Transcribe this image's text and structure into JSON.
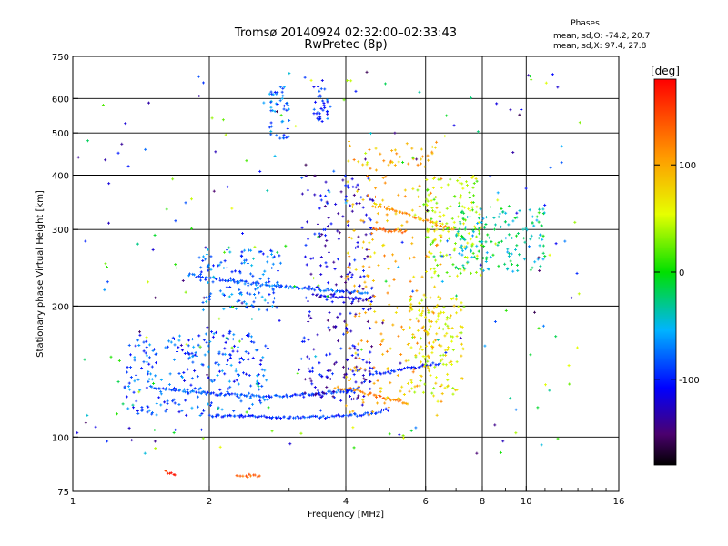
{
  "chart_data": {
    "type": "scatter",
    "title": "Tromsø 20140924 02:32:00–02:33:43",
    "subtitle": "RwPretec (8p)",
    "xlabel": "Frequency [MHz]",
    "ylabel": "Stationary phase Virtual Height [km]",
    "x_scale": "log2",
    "y_scale": "log",
    "xlim": [
      1,
      16
    ],
    "ylim": [
      75,
      750
    ],
    "x_ticks": [
      1,
      2,
      4,
      6,
      8,
      10,
      16
    ],
    "x_minor_ticks": [
      3,
      5,
      7,
      9,
      11,
      12,
      13,
      14,
      15
    ],
    "y_ticks": [
      75,
      100,
      200,
      300,
      400,
      500,
      600,
      750
    ],
    "grid": true,
    "phases_box": {
      "title": "Phases",
      "line_o": "mean, sd,O: -74.2, 20.7",
      "line_x": "mean, sd,X:  97.4, 27.8"
    },
    "colorbar": {
      "label": "[deg]",
      "range": [
        -180,
        180
      ],
      "ticks": [
        100,
        0,
        -100
      ],
      "colormap": "rainbow (black at -180, red at +180)"
    },
    "series_traces": [
      {
        "name": "",
        "kind": "trace",
        "phase": -95,
        "points": [
          [
            2.0,
            112
          ],
          [
            2.5,
            111.5
          ],
          [
            3.0,
            111
          ],
          [
            3.5,
            111
          ],
          [
            4.0,
            112
          ],
          [
            4.5,
            113
          ],
          [
            5.0,
            116
          ]
        ]
      },
      {
        "name": "",
        "kind": "trace",
        "phase": -85,
        "points": [
          [
            1.5,
            130
          ],
          [
            1.8,
            127
          ],
          [
            2.2,
            125
          ],
          [
            2.7,
            124
          ],
          [
            3.2,
            125
          ],
          [
            3.8,
            127
          ],
          [
            4.3,
            129
          ]
        ]
      },
      {
        "name": "",
        "kind": "trace",
        "phase": -105,
        "points": [
          [
            4.5,
            140
          ],
          [
            5.0,
            141
          ],
          [
            5.5,
            144
          ],
          [
            6.0,
            146
          ],
          [
            6.5,
            148
          ]
        ]
      },
      {
        "name": "",
        "kind": "trace",
        "phase": -80,
        "points": [
          [
            1.8,
            236
          ],
          [
            2.0,
            232
          ],
          [
            2.3,
            228
          ],
          [
            2.6,
            224
          ],
          [
            2.9,
            222
          ],
          [
            3.2,
            220
          ],
          [
            3.6,
            218
          ],
          [
            4.0,
            216
          ],
          [
            4.5,
            214
          ]
        ]
      },
      {
        "name": "",
        "kind": "trace",
        "phase": -115,
        "points": [
          [
            3.4,
            212
          ],
          [
            3.8,
            210
          ],
          [
            4.2,
            208
          ],
          [
            4.6,
            206
          ]
        ]
      },
      {
        "name": "",
        "kind": "trace",
        "phase": 110,
        "points": [
          [
            4.6,
            340
          ],
          [
            5.0,
            335
          ],
          [
            5.5,
            325
          ],
          [
            6.0,
            315
          ],
          [
            6.5,
            305
          ],
          [
            7.0,
            300
          ]
        ]
      },
      {
        "name": "",
        "kind": "trace",
        "phase": 130,
        "points": [
          [
            4.6,
            300
          ],
          [
            5.0,
            298
          ],
          [
            5.5,
            296
          ]
        ]
      },
      {
        "name": "",
        "kind": "trace",
        "phase": 120,
        "points": [
          [
            3.8,
            130
          ],
          [
            4.2,
            128
          ],
          [
            4.6,
            125
          ],
          [
            5.0,
            122
          ],
          [
            5.5,
            120
          ]
        ]
      },
      {
        "name": "",
        "kind": "trace",
        "phase": 135,
        "points": [
          [
            2.3,
            82
          ],
          [
            2.4,
            81
          ],
          [
            2.5,
            82
          ],
          [
            2.6,
            81
          ]
        ]
      },
      {
        "name": "",
        "kind": "trace",
        "phase": 160,
        "points": [
          [
            1.6,
            83
          ],
          [
            1.7,
            82
          ]
        ]
      }
    ],
    "series_clusters": [
      {
        "name": "",
        "kind": "cluster",
        "phase": -95,
        "freq": [
          3.4,
          3.7
        ],
        "height": [
          530,
          640
        ]
      },
      {
        "name": "",
        "kind": "cluster",
        "phase": -75,
        "freq": [
          2.7,
          3.0
        ],
        "height": [
          480,
          640
        ]
      },
      {
        "name": "",
        "kind": "cluster",
        "phase": -75,
        "freq": [
          1.9,
          2.9
        ],
        "height": [
          195,
          270
        ]
      },
      {
        "name": "",
        "kind": "cluster",
        "phase": -120,
        "freq": [
          3.2,
          4.6
        ],
        "height": [
          120,
          400
        ]
      },
      {
        "name": "",
        "kind": "cluster",
        "phase": -85,
        "freq": [
          1.3,
          2.7
        ],
        "height": [
          112,
          175
        ]
      },
      {
        "name": "",
        "kind": "cluster",
        "phase": 60,
        "freq": [
          5.5,
          7.3
        ],
        "height": [
          125,
          210
        ]
      },
      {
        "name": "",
        "kind": "cluster",
        "phase": 95,
        "freq": [
          4.0,
          6.5
        ],
        "height": [
          110,
          480
        ]
      },
      {
        "name": "",
        "kind": "cluster",
        "phase": 40,
        "freq": [
          6.0,
          8.0
        ],
        "height": [
          230,
          400
        ]
      },
      {
        "name": "",
        "kind": "cluster",
        "phase": -30,
        "freq": [
          7.0,
          11.0
        ],
        "height": [
          240,
          340
        ]
      },
      {
        "name": "",
        "kind": "cluster",
        "phase": -50,
        "freq": [
          1.0,
          13.5
        ],
        "height": [
          90,
          700
        ]
      }
    ]
  }
}
